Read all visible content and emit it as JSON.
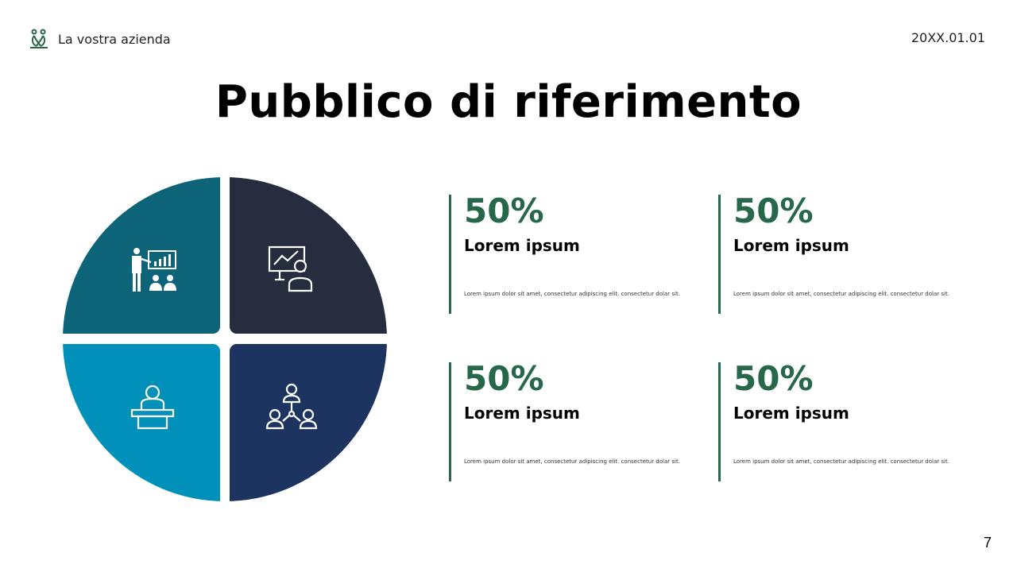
{
  "header": {
    "company": "La vostra azienda",
    "date": "20XX.01.01",
    "logo_icon": "people-logo-icon"
  },
  "title": "Pubblico di riferimento",
  "page_number": "7",
  "colors": {
    "accent": "#27674a",
    "q1": "#0d6378",
    "q2": "#252d3e",
    "q3": "#0090b9",
    "q4": "#1d3461"
  },
  "quadrants": [
    {
      "icon": "presenter-chart-audience-icon"
    },
    {
      "icon": "person-presentation-board-icon"
    },
    {
      "icon": "speaker-podium-icon"
    },
    {
      "icon": "team-network-icon"
    }
  ],
  "cards": [
    {
      "value": "50%",
      "heading": "Lorem ipsum",
      "text": "Lorem ipsum dolor sit amet, consectetur adipiscing elit. consectetur dolar sit."
    },
    {
      "value": "50%",
      "heading": "Lorem ipsum",
      "text": "Lorem ipsum dolor sit amet, consectetur adipiscing elit. consectetur dolar sit."
    },
    {
      "value": "50%",
      "heading": "Lorem ipsum",
      "text": "Lorem ipsum dolor sit amet, consectetur adipiscing elit. consectetur dolar sit."
    },
    {
      "value": "50%",
      "heading": "Lorem ipsum",
      "text": "Lorem ipsum dolor sit amet, consectetur adipiscing elit. consectetur dolar sit."
    }
  ]
}
